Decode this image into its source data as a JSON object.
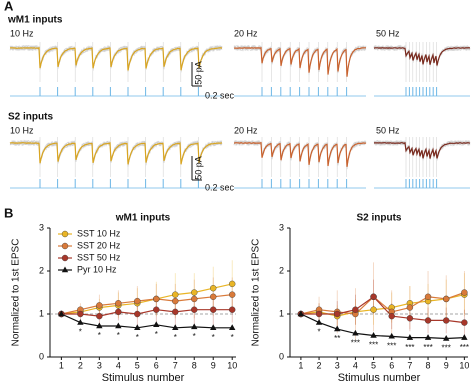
{
  "panel_a": {
    "label": "A",
    "rows": [
      {
        "title": "wM1 inputs",
        "columns": [
          "10 Hz",
          "20 Hz",
          "50 Hz"
        ],
        "scale_y": "50 pA",
        "scale_x": "0.2 sec"
      },
      {
        "title": "S2 inputs",
        "columns": [
          "10 Hz",
          "20 Hz",
          "50 Hz"
        ],
        "scale_y": "50 pA",
        "scale_x": "0.2 sec"
      }
    ]
  },
  "panel_b_label": "B",
  "chart_data": [
    {
      "type": "line",
      "title": "wM1 inputs",
      "x_label": "Stimulus number",
      "y_label": "Normalized to 1st EPSC",
      "x": [
        1,
        2,
        3,
        4,
        5,
        6,
        7,
        8,
        9,
        10
      ],
      "xlim": [
        0.4,
        10.2
      ],
      "xticks": [
        1,
        2,
        3,
        4,
        5,
        6,
        7,
        8,
        9,
        10
      ],
      "ylim": [
        0,
        3
      ],
      "yticks": [
        0,
        1,
        2,
        3
      ],
      "hline": 1,
      "legend": "upper left",
      "series": [
        {
          "name": "SST 10 Hz",
          "color": "#e9b526",
          "marker": "circle",
          "values": [
            1,
            1.05,
            1.15,
            1.2,
            1.25,
            1.35,
            1.45,
            1.5,
            1.6,
            1.7
          ],
          "errors": [
            0,
            0.1,
            0.2,
            0.3,
            0.35,
            0.4,
            0.5,
            0.45,
            0.5,
            0.55
          ]
        },
        {
          "name": "SST 20 Hz",
          "color": "#d97a3a",
          "marker": "circle",
          "values": [
            1,
            1.1,
            1.2,
            1.25,
            1.3,
            1.35,
            1.3,
            1.35,
            1.4,
            1.45
          ],
          "errors": [
            0,
            0.15,
            0.25,
            0.3,
            0.35,
            0.35,
            0.4,
            0.45,
            0.45,
            0.4
          ]
        },
        {
          "name": "SST 50 Hz",
          "color": "#a8372a",
          "marker": "circle",
          "values": [
            1,
            1.0,
            0.95,
            1.05,
            1.0,
            1.1,
            1.05,
            1.1,
            1.1,
            1.1
          ],
          "errors": [
            0,
            0.15,
            0.2,
            0.2,
            0.3,
            0.3,
            0.3,
            0.35,
            0.35,
            0.3
          ]
        },
        {
          "name": "Pyr 10 Hz",
          "color": "#111111",
          "marker": "triangle",
          "values": [
            1,
            0.8,
            0.72,
            0.72,
            0.68,
            0.75,
            0.68,
            0.7,
            0.68,
            0.68
          ],
          "errors": [
            0,
            0.05,
            0.05,
            0.05,
            0.05,
            0.05,
            0.05,
            0.05,
            0.05,
            0.05
          ]
        }
      ],
      "significance": [
        null,
        "*",
        "*",
        "*",
        "*",
        "*",
        "*",
        "*",
        "*",
        "*"
      ]
    },
    {
      "type": "line",
      "title": "S2 inputs",
      "x_label": "Stimulus number",
      "y_label": "Normalized to 1st EPSC",
      "x": [
        1,
        2,
        3,
        4,
        5,
        6,
        7,
        8,
        9,
        10
      ],
      "xlim": [
        0.4,
        10.2
      ],
      "xticks": [
        1,
        2,
        3,
        4,
        5,
        6,
        7,
        8,
        9,
        10
      ],
      "ylim": [
        0,
        3
      ],
      "yticks": [
        0,
        1,
        2,
        3
      ],
      "hline": 1,
      "series": [
        {
          "color": "#e9b526",
          "marker": "circle",
          "values": [
            1,
            1.05,
            0.95,
            1.05,
            1.1,
            1.15,
            1.25,
            1.3,
            1.35,
            1.45
          ],
          "errors": [
            0,
            0.2,
            0.25,
            0.3,
            0.35,
            0.35,
            0.4,
            0.4,
            0.45,
            0.5
          ]
        },
        {
          "color": "#d97a3a",
          "marker": "circle",
          "values": [
            1,
            1.1,
            1.05,
            1.0,
            1.4,
            1.05,
            1.15,
            1.4,
            1.35,
            1.5
          ],
          "errors": [
            0,
            0.3,
            0.5,
            0.6,
            0.8,
            0.5,
            0.5,
            0.6,
            0.55,
            0.5
          ]
        },
        {
          "color": "#a8372a",
          "marker": "circle",
          "values": [
            1,
            1.0,
            1.0,
            1.1,
            1.4,
            0.95,
            0.9,
            0.85,
            0.85,
            0.8
          ],
          "errors": [
            0,
            0.25,
            0.3,
            0.35,
            0.4,
            0.3,
            0.3,
            0.3,
            0.3,
            0.3
          ]
        },
        {
          "color": "#111111",
          "marker": "triangle",
          "values": [
            1,
            0.8,
            0.65,
            0.55,
            0.5,
            0.48,
            0.45,
            0.45,
            0.43,
            0.45
          ],
          "errors": [
            0,
            0.05,
            0.05,
            0.05,
            0.05,
            0.05,
            0.05,
            0.05,
            0.05,
            0.05
          ]
        }
      ],
      "significance": [
        null,
        "*",
        "**",
        "***",
        "***",
        "***",
        "***",
        "***",
        "***",
        "***"
      ]
    }
  ]
}
